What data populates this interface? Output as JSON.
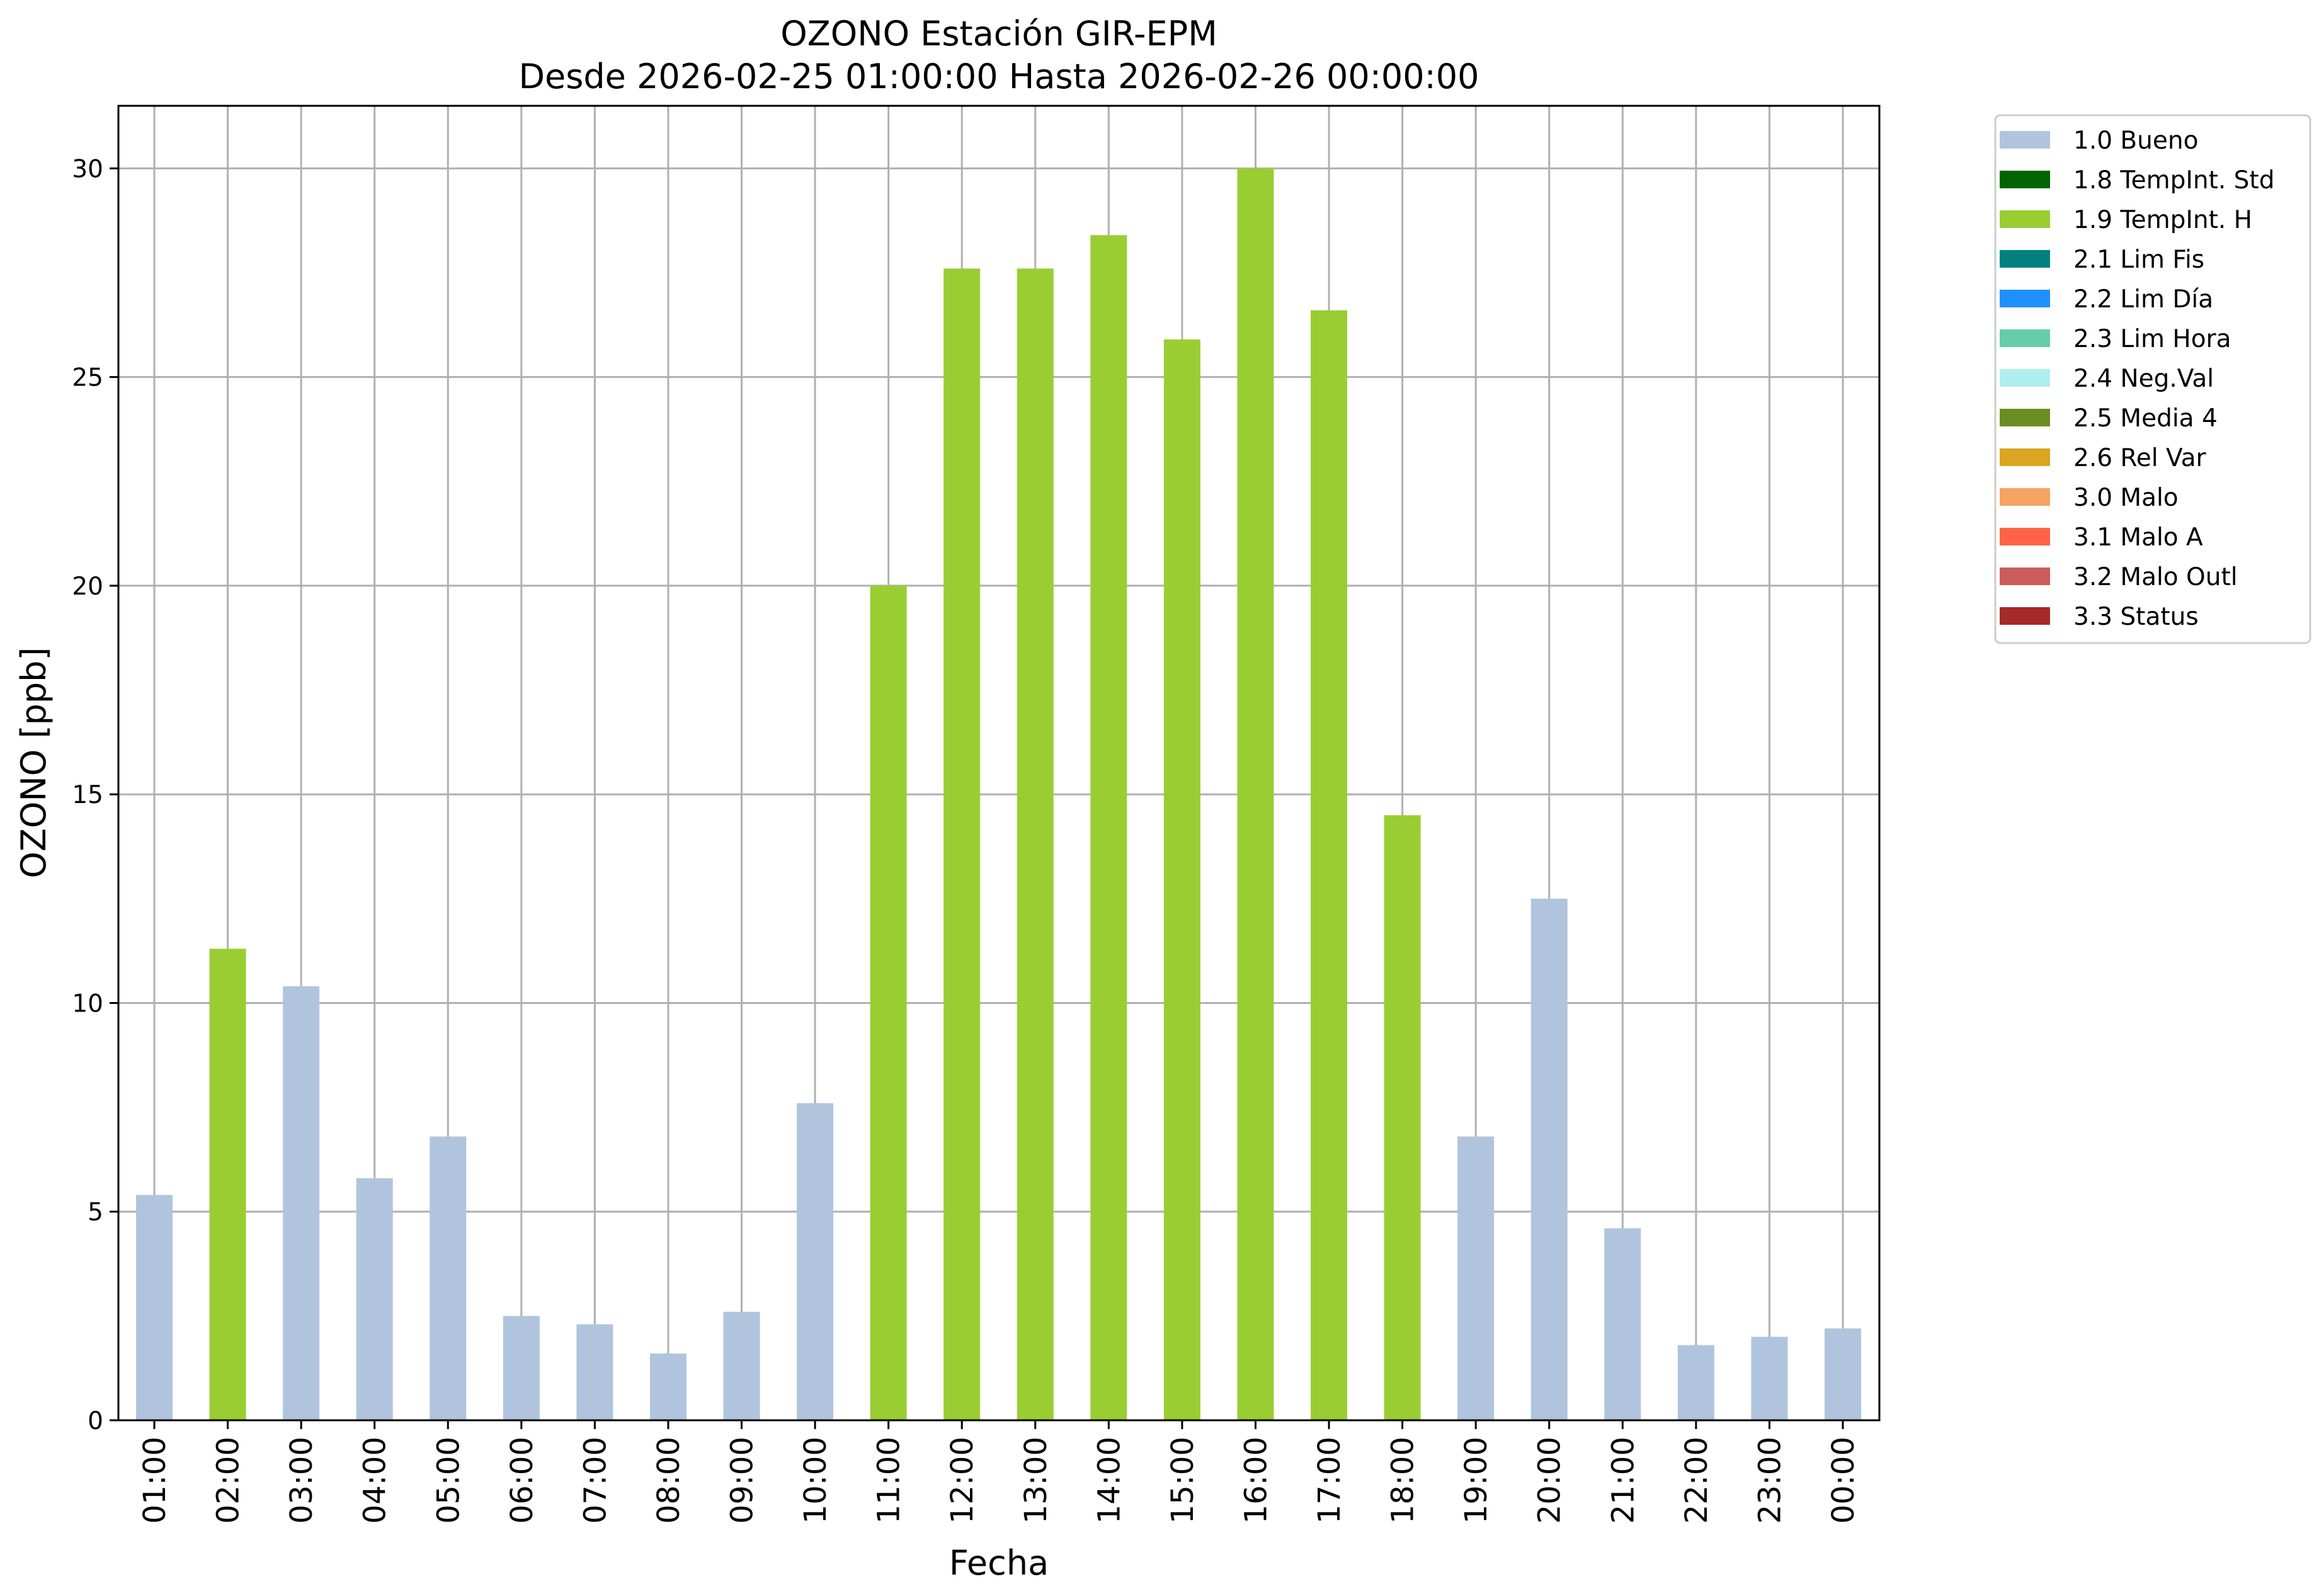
{
  "chart_data": {
    "type": "bar",
    "title": "OZONO Estación GIR-EPM",
    "subtitle": "Desde 2026-02-25 01:00:00 Hasta 2026-02-26 00:00:00",
    "xlabel": "Fecha",
    "ylabel": "OZONO [ppb]",
    "ylim": [
      0,
      31.5
    ],
    "yticks": [
      "0",
      "5",
      "10",
      "15",
      "20",
      "25",
      "30"
    ],
    "grid": true,
    "legend_position": "outside-top-right",
    "categories": [
      "01:00",
      "02:00",
      "03:00",
      "04:00",
      "05:00",
      "06:00",
      "07:00",
      "08:00",
      "09:00",
      "10:00",
      "11:00",
      "12:00",
      "13:00",
      "14:00",
      "15:00",
      "16:00",
      "17:00",
      "18:00",
      "19:00",
      "20:00",
      "21:00",
      "22:00",
      "23:00",
      "00:00"
    ],
    "values": [
      5.4,
      11.3,
      10.4,
      5.8,
      6.8,
      2.5,
      2.3,
      1.6,
      2.6,
      7.6,
      20.0,
      27.6,
      27.6,
      28.4,
      25.9,
      30.0,
      26.6,
      14.5,
      6.8,
      12.5,
      4.6,
      1.8,
      2.0,
      2.2
    ],
    "flags": [
      "1.0 Bueno",
      "1.9 TempInt. H",
      "1.0 Bueno",
      "1.0 Bueno",
      "1.0 Bueno",
      "1.0 Bueno",
      "1.0 Bueno",
      "1.0 Bueno",
      "1.0 Bueno",
      "1.0 Bueno",
      "1.9 TempInt. H",
      "1.9 TempInt. H",
      "1.9 TempInt. H",
      "1.9 TempInt. H",
      "1.9 TempInt. H",
      "1.9 TempInt. H",
      "1.9 TempInt. H",
      "1.9 TempInt. H",
      "1.0 Bueno",
      "1.0 Bueno",
      "1.0 Bueno",
      "1.0 Bueno",
      "1.0 Bueno",
      "1.0 Bueno"
    ],
    "legend": [
      {
        "label": "1.0 Bueno",
        "color": "#b0c4de"
      },
      {
        "label": "1.8 TempInt. Std",
        "color": "#006400"
      },
      {
        "label": "1.9 TempInt. H",
        "color": "#9acd32"
      },
      {
        "label": "2.1 Lim Fis",
        "color": "#008080"
      },
      {
        "label": "2.2 Lim Día",
        "color": "#1e90ff"
      },
      {
        "label": "2.3 Lim Hora",
        "color": "#66cdaa"
      },
      {
        "label": "2.4 Neg.Val",
        "color": "#afeeee"
      },
      {
        "label": "2.5 Media 4",
        "color": "#6b8e23"
      },
      {
        "label": "2.6 Rel Var",
        "color": "#daa520"
      },
      {
        "label": "3.0 Malo",
        "color": "#f4a460"
      },
      {
        "label": "3.1 Malo A",
        "color": "#ff6347"
      },
      {
        "label": "3.2 Malo Outl",
        "color": "#cd5c5c"
      },
      {
        "label": "3.3 Status",
        "color": "#a52a2a"
      }
    ]
  }
}
